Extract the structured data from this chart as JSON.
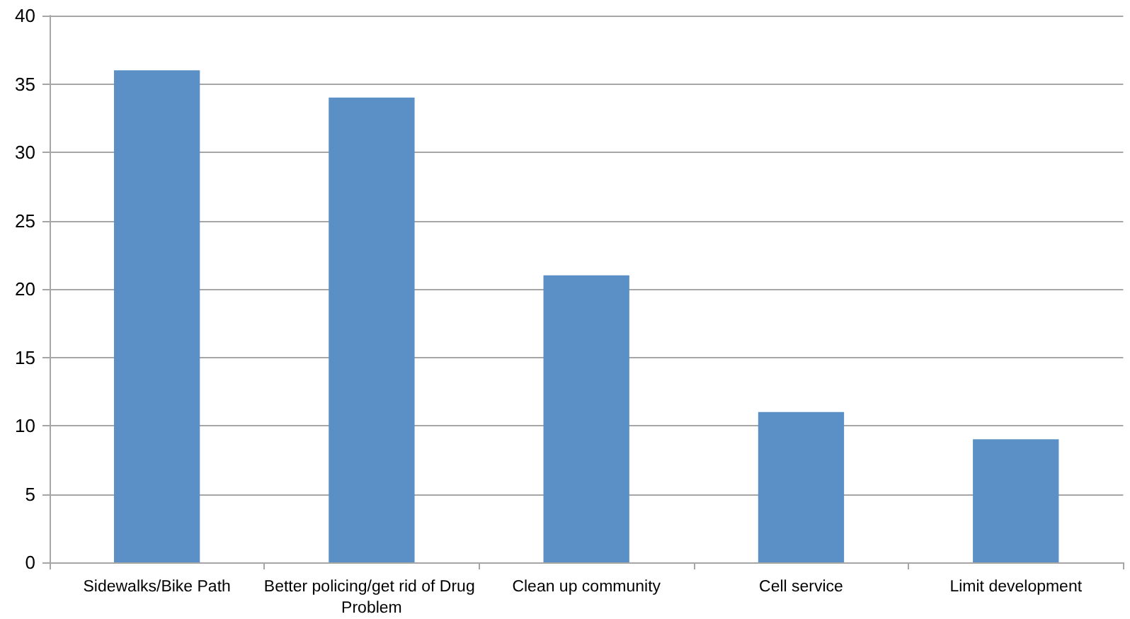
{
  "chart_data": {
    "type": "bar",
    "categories": [
      "Sidewalks/Bike Path",
      "Better policing/get rid of Drug Problem",
      "Clean up community",
      "Cell service",
      "Limit development"
    ],
    "values": [
      36,
      34,
      21,
      11,
      9
    ],
    "color": "#5b90c6",
    "ylim": [
      0,
      40
    ],
    "yticks": [
      0,
      5,
      10,
      15,
      20,
      25,
      30,
      35,
      40
    ],
    "grid": "y"
  }
}
